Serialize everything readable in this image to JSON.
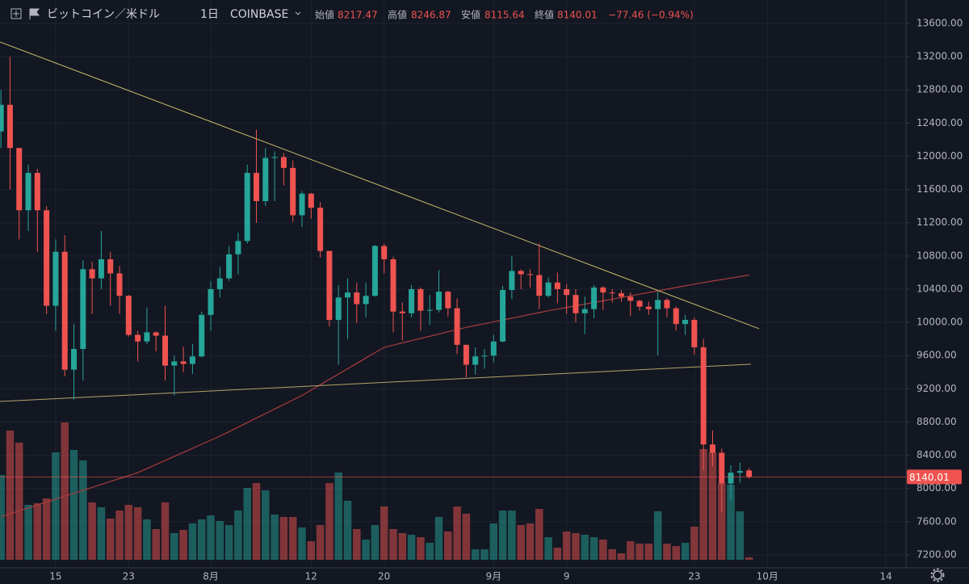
{
  "header": {
    "symbol": "ビットコイン／米ドル",
    "interval": "1日",
    "exchange": "COINBASE",
    "open_label": "始値",
    "high_label": "高値",
    "low_label": "安値",
    "close_label": "終値",
    "change": "−77.46 (−0.94%)"
  },
  "chart_data": {
    "type": "candlestick",
    "open": [
      12300,
      12620,
      12100,
      11350,
      11800,
      11350,
      10200,
      10850,
      9430,
      9680,
      10640,
      10530,
      10760,
      10590,
      10320,
      9850,
      9770,
      9880,
      9840,
      9480,
      9530,
      9500,
      9590,
      10090,
      10400,
      10530,
      10820,
      10980,
      11800,
      11460,
      11980,
      11990,
      11860,
      11290,
      11550,
      11380,
      10860,
      10030,
      10300,
      10360,
      10220,
      10320,
      10920,
      10760,
      10130,
      10110,
      10400,
      10140,
      10150,
      10370,
      10170,
      9730,
      9490,
      9590,
      9600,
      9770,
      10390,
      10620,
      10580,
      10570,
      10320,
      10480,
      10400,
      10330,
      10110,
      10160,
      10420,
      10360,
      10350,
      10310,
      10260,
      10190,
      10160,
      10270,
      10170,
      9980,
      10030,
      9700,
      8530,
      8430,
      8060,
      8190,
      8217.47
    ],
    "high": [
      12800,
      13200,
      12100,
      11900,
      11850,
      11400,
      11000,
      11050,
      9980,
      10750,
      10730,
      11100,
      10850,
      10680,
      10330,
      9900,
      10180,
      9890,
      10200,
      9600,
      9710,
      9740,
      10130,
      10500,
      10670,
      10920,
      11080,
      11900,
      12320,
      12100,
      12060,
      12040,
      11950,
      11580,
      11560,
      11450,
      10860,
      10450,
      10530,
      10480,
      10480,
      10930,
      10950,
      10790,
      10240,
      10450,
      10420,
      10330,
      10630,
      10380,
      10290,
      9730,
      9700,
      9680,
      9850,
      10440,
      10800,
      10640,
      10640,
      10950,
      10540,
      10600,
      10460,
      10400,
      10310,
      10450,
      10440,
      10400,
      10390,
      10360,
      10270,
      10250,
      10370,
      10290,
      10190,
      10090,
      10060,
      9800,
      8700,
      8480,
      8280,
      8310,
      8246.87
    ],
    "low": [
      12100,
      11600,
      11000,
      11100,
      10850,
      10100,
      9900,
      9350,
      9070,
      9300,
      10100,
      10400,
      10200,
      10100,
      9830,
      9530,
      9740,
      9650,
      9300,
      9120,
      9400,
      9380,
      9580,
      9900,
      10300,
      10500,
      10580,
      10950,
      11200,
      11400,
      11460,
      11650,
      11210,
      11150,
      11250,
      10780,
      9950,
      9490,
      9800,
      9990,
      10060,
      10310,
      10590,
      9880,
      9780,
      10060,
      9900,
      9970,
      10120,
      10070,
      9620,
      9340,
      9370,
      9440,
      9520,
      9760,
      10280,
      10400,
      10420,
      10160,
      10300,
      10230,
      10100,
      10000,
      9860,
      10050,
      10150,
      10240,
      10250,
      10080,
      10140,
      10090,
      9600,
      10060,
      9900,
      9850,
      9610,
      8220,
      8270,
      7710,
      7870,
      8070,
      8115.64
    ],
    "close": [
      12620,
      12100,
      11350,
      11800,
      11350,
      10200,
      10850,
      9430,
      9680,
      10640,
      10530,
      10760,
      10590,
      10320,
      9850,
      9770,
      9880,
      9840,
      9480,
      9530,
      9500,
      9590,
      10090,
      10400,
      10530,
      10820,
      10980,
      11800,
      11460,
      11980,
      11990,
      11860,
      11290,
      11550,
      11380,
      10860,
      10030,
      10300,
      10360,
      10220,
      10320,
      10920,
      10760,
      10130,
      10110,
      10400,
      10140,
      10150,
      10370,
      10170,
      9730,
      9490,
      9590,
      9600,
      9770,
      10390,
      10620,
      10580,
      10570,
      10320,
      10480,
      10400,
      10330,
      10110,
      10160,
      10420,
      10360,
      10350,
      10310,
      10260,
      10190,
      10160,
      10270,
      10170,
      9980,
      10030,
      9700,
      8530,
      8430,
      8060,
      8190,
      8210,
      8140.01
    ],
    "volume": [
      105,
      160,
      145,
      68,
      70,
      76,
      133,
      170,
      136,
      123,
      71,
      65,
      51,
      61,
      68,
      65,
      50,
      38,
      71,
      33,
      37,
      45,
      50,
      55,
      48,
      43,
      61,
      89,
      95,
      86,
      56,
      53,
      53,
      40,
      23,
      43,
      95,
      108,
      73,
      38,
      25,
      43,
      66,
      38,
      33,
      31,
      28,
      21,
      53,
      35,
      66,
      57,
      13,
      13,
      45,
      61,
      61,
      43,
      45,
      63,
      28,
      15,
      35,
      33,
      31,
      28,
      25,
      13,
      8,
      23,
      20,
      20,
      60,
      20,
      17,
      21,
      41,
      137,
      133,
      95,
      93,
      60,
      3
    ],
    "ma": [
      7660,
      7695,
      7731,
      7766,
      7801,
      7837,
      7872,
      7907,
      7943,
      7978,
      8013,
      8049,
      8084,
      8119,
      8155,
      8190,
      8239,
      8288,
      8337,
      8386,
      8434,
      8483,
      8532,
      8581,
      8630,
      8684,
      8739,
      8793,
      8848,
      8902,
      8957,
      9011,
      9066,
      9120,
      9184,
      9249,
      9313,
      9378,
      9442,
      9507,
      9571,
      9636,
      9700,
      9727,
      9753,
      9780,
      9807,
      9833,
      9860,
      9887,
      9913,
      9940,
      9962,
      9984,
      10007,
      10029,
      10051,
      10073,
      10096,
      10118,
      10140,
      10160,
      10180,
      10200,
      10220,
      10240,
      10260,
      10280,
      10300,
      10320,
      10340,
      10360,
      10380,
      10400,
      10420,
      10440,
      10460,
      10480,
      10498,
      10516,
      10534,
      10552,
      10570
    ],
    "up_color": "#26a69a",
    "down_color": "#ef5350",
    "ma_color": "#a83c3c",
    "trendlines": [
      {
        "x": [
          -0.1,
          83.1
        ],
        "y": [
          13376,
          9924
        ],
        "color": "#c8b96a"
      },
      {
        "x": [
          -0.1,
          82.2
        ],
        "y": [
          9048,
          9496
        ],
        "color": "#b5a26a"
      }
    ],
    "xlim": [
      -0.1,
      99.2
    ],
    "xticks": [
      {
        "value": 6,
        "label": "15"
      },
      {
        "value": 14,
        "label": "23"
      },
      {
        "value": 23,
        "label": "8月"
      },
      {
        "value": 34,
        "label": "12"
      },
      {
        "value": 42,
        "label": "20"
      },
      {
        "value": 54,
        "label": "9月"
      },
      {
        "value": 62,
        "label": "9"
      },
      {
        "value": 76,
        "label": "23"
      },
      {
        "value": 84,
        "label": "10月"
      },
      {
        "value": 97,
        "label": "14"
      }
    ],
    "ylim": [
      7054,
      13882
    ],
    "yticks": [
      {
        "value": 7200,
        "label": "7200.00"
      },
      {
        "value": 7600,
        "label": "7600.00"
      },
      {
        "value": 8000,
        "label": "8000.00"
      },
      {
        "value": 8400,
        "label": "8400.00"
      },
      {
        "value": 8800,
        "label": "8800.00"
      },
      {
        "value": 9200,
        "label": "9200.00"
      },
      {
        "value": 9600,
        "label": "9600.00"
      },
      {
        "value": 10000,
        "label": "10000.00"
      },
      {
        "value": 10400,
        "label": "10400.00"
      },
      {
        "value": 10800,
        "label": "10800.00"
      },
      {
        "value": 11200,
        "label": "11200.00"
      },
      {
        "value": 11600,
        "label": "11600.00"
      },
      {
        "value": 12000,
        "label": "12000.00"
      },
      {
        "value": 12400,
        "label": "12400.00"
      },
      {
        "value": 12800,
        "label": "12800.00"
      },
      {
        "value": 13200,
        "label": "13200.00"
      },
      {
        "value": 13600,
        "label": "13600.00"
      }
    ],
    "grid": true
  }
}
